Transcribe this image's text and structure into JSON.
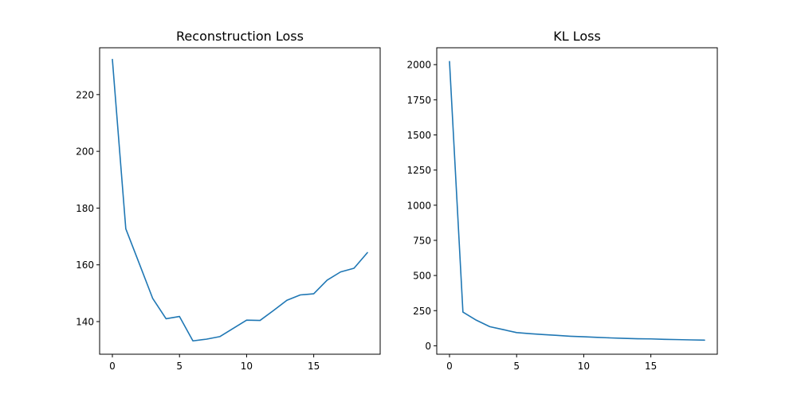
{
  "colors": {
    "line": "#1f77b4"
  },
  "chart_data": [
    {
      "type": "line",
      "title": "Reconstruction Loss",
      "xlabel": "",
      "ylabel": "",
      "xlim": [
        -0.95,
        19.95
      ],
      "ylim": [
        128.5,
        236.5
      ],
      "xticks": [
        0,
        5,
        10,
        15
      ],
      "yticks": [
        140,
        160,
        180,
        200,
        220
      ],
      "grid": false,
      "x": [
        0,
        1,
        2,
        3,
        4,
        5,
        6,
        7,
        8,
        9,
        10,
        11,
        12,
        13,
        14,
        15,
        16,
        17,
        18,
        19
      ],
      "series": [
        {
          "values": [
            232.4,
            172.7,
            160.5,
            148.2,
            141.0,
            141.8,
            133.2,
            133.8,
            134.7,
            137.6,
            140.5,
            140.4,
            143.9,
            147.5,
            149.4,
            149.8,
            154.6,
            157.5,
            158.8,
            164.3
          ]
        }
      ]
    },
    {
      "type": "line",
      "title": "KL Loss",
      "xlabel": "",
      "ylabel": "",
      "xlim": [
        -0.95,
        19.95
      ],
      "ylim": [
        -60,
        2120
      ],
      "xticks": [
        0,
        5,
        10,
        15
      ],
      "yticks": [
        0,
        250,
        500,
        750,
        1000,
        1250,
        1500,
        1750,
        2000
      ],
      "grid": false,
      "x": [
        0,
        1,
        2,
        3,
        4,
        5,
        6,
        7,
        8,
        9,
        10,
        11,
        12,
        13,
        14,
        15,
        16,
        17,
        18,
        19
      ],
      "series": [
        {
          "values": [
            2022,
            240,
            182,
            136,
            115,
            94,
            86,
            80,
            74,
            68,
            64,
            60,
            56,
            53,
            50,
            49,
            46,
            44,
            42,
            40
          ]
        }
      ]
    }
  ]
}
